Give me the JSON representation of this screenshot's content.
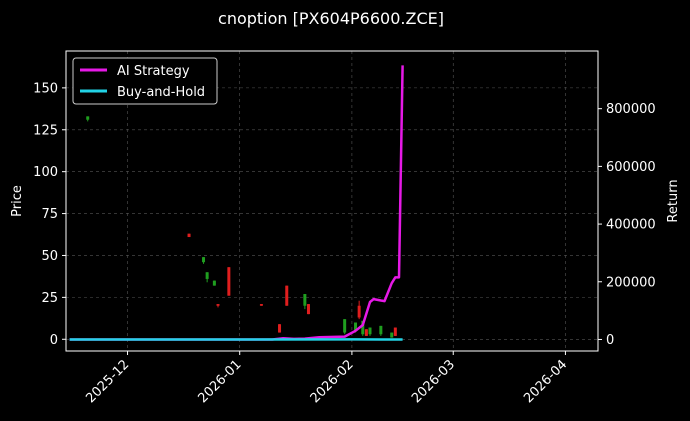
{
  "chart_data": {
    "type": "line",
    "title": "cnoption [PX604P6600.ZCE]",
    "ylabel_left": "Price",
    "ylabel_right": "Return",
    "x_start": "2025-11-15",
    "xlim": [
      "2025-11-14",
      "2026-04-10"
    ],
    "xticks": [
      "2025-12",
      "2026-01",
      "2026-02",
      "2026-03",
      "2026-04"
    ],
    "ylim_left": [
      -7,
      172
    ],
    "yticks_left": [
      0,
      25,
      50,
      75,
      100,
      125,
      150
    ],
    "ylim_right": [
      -40000,
      1000000
    ],
    "yticks_right": [
      0,
      200000,
      400000,
      600000,
      800000
    ],
    "grid": true,
    "legend_position": "top-left",
    "legend": [
      "AI Strategy",
      "Buy-and-Hold"
    ],
    "colors": {
      "background": "#000000",
      "up": "#1f9e1f",
      "down": "#e01e1e",
      "ai_strategy": "#e619e6",
      "buy_and_hold": "#22d3e6",
      "grid": "#555555"
    },
    "candles": [
      {
        "date": "2025-11-20",
        "open": 131,
        "close": 133,
        "low": 130,
        "high": 133
      },
      {
        "date": "2025-12-18",
        "open": 63,
        "close": 61,
        "low": 61,
        "high": 63
      },
      {
        "date": "2025-12-22",
        "open": 46,
        "close": 49,
        "low": 45,
        "high": 49
      },
      {
        "date": "2025-12-23",
        "open": 36,
        "close": 40,
        "low": 34,
        "high": 40
      },
      {
        "date": "2025-12-25",
        "open": 32,
        "close": 35,
        "low": 32,
        "high": 35
      },
      {
        "date": "2025-12-26",
        "open": 21,
        "close": 20,
        "low": 19,
        "high": 21
      },
      {
        "date": "2025-12-29",
        "open": 43,
        "close": 26,
        "low": 26,
        "high": 43
      },
      {
        "date": "2026-01-07",
        "open": 21,
        "close": 20,
        "low": 20,
        "high": 21
      },
      {
        "date": "2026-01-12",
        "open": 9,
        "close": 4,
        "low": 4,
        "high": 9
      },
      {
        "date": "2026-01-14",
        "open": 32,
        "close": 20,
        "low": 20,
        "high": 32
      },
      {
        "date": "2026-01-19",
        "open": 20,
        "close": 27,
        "low": 18,
        "high": 27
      },
      {
        "date": "2026-01-20",
        "open": 21,
        "close": 15,
        "low": 15,
        "high": 21
      },
      {
        "date": "2026-01-30",
        "open": 4,
        "close": 12,
        "low": 3,
        "high": 12
      },
      {
        "date": "2026-02-02",
        "open": 5,
        "close": 10,
        "low": 4,
        "high": 10
      },
      {
        "date": "2026-02-03",
        "open": 20,
        "close": 13,
        "low": 12,
        "high": 23
      },
      {
        "date": "2026-02-04",
        "open": 3,
        "close": 11,
        "low": 2,
        "high": 11
      },
      {
        "date": "2026-02-05",
        "open": 6,
        "close": 2,
        "low": 2,
        "high": 6
      },
      {
        "date": "2026-02-06",
        "open": 3,
        "close": 7,
        "low": 2,
        "high": 7
      },
      {
        "date": "2026-02-09",
        "open": 3,
        "close": 8,
        "low": 2,
        "high": 8
      },
      {
        "date": "2026-02-12",
        "open": 1,
        "close": 4,
        "low": 1,
        "high": 4
      },
      {
        "date": "2026-02-13",
        "open": 7,
        "close": 2,
        "low": 2,
        "high": 7
      }
    ],
    "series": [
      {
        "name": "AI Strategy",
        "axis": "right",
        "points": [
          [
            "2025-11-15",
            0
          ],
          [
            "2026-01-10",
            0
          ],
          [
            "2026-01-13",
            4000
          ],
          [
            "2026-01-16",
            2000
          ],
          [
            "2026-01-19",
            3000
          ],
          [
            "2026-01-23",
            8000
          ],
          [
            "2026-01-30",
            10000
          ],
          [
            "2026-02-02",
            30000
          ],
          [
            "2026-02-04",
            50000
          ],
          [
            "2026-02-06",
            130000
          ],
          [
            "2026-02-07",
            140000
          ],
          [
            "2026-02-09",
            135000
          ],
          [
            "2026-02-10",
            133000
          ],
          [
            "2026-02-12",
            195000
          ],
          [
            "2026-02-13",
            215000
          ],
          [
            "2026-02-14",
            215000
          ],
          [
            "2026-02-15",
            950000
          ]
        ]
      },
      {
        "name": "Buy-and-Hold",
        "axis": "right",
        "points": [
          [
            "2025-11-15",
            0
          ],
          [
            "2026-01-01",
            0
          ],
          [
            "2026-02-01",
            200
          ],
          [
            "2026-02-15",
            0
          ]
        ]
      }
    ]
  }
}
